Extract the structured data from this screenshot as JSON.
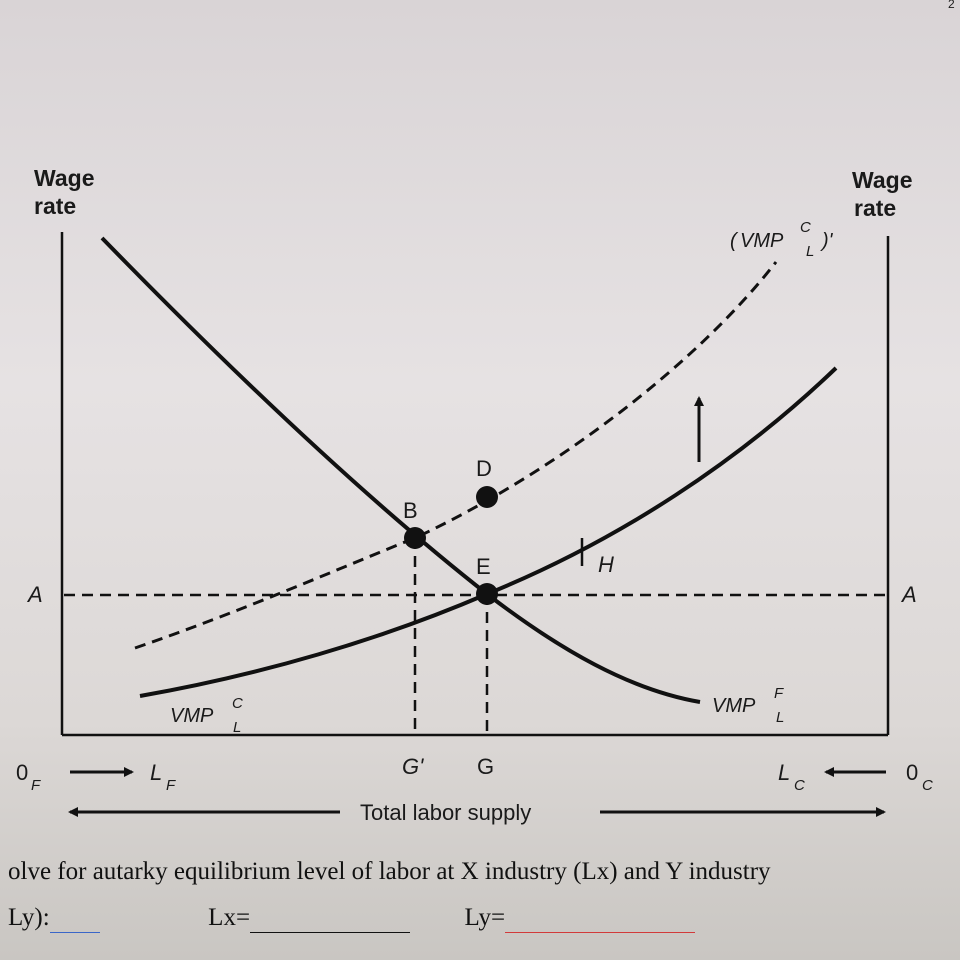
{
  "diagram": {
    "left_axis_label": [
      "Wage",
      "rate"
    ],
    "right_axis_label": [
      "Wage",
      "rate"
    ],
    "curve_labels": {
      "vmp_f": {
        "main": "VMP",
        "sup": "F",
        "sub": "L"
      },
      "vmp_c": {
        "main": "VMP",
        "sup": "C",
        "sub": "L"
      },
      "vmp_c_prime": {
        "open": "(",
        "main": "VMP",
        "sup": "C",
        "sub": "L",
        "close": ")'"
      }
    },
    "points": {
      "b": "B",
      "d": "D",
      "e": "E",
      "h": "H"
    },
    "wage_line": {
      "left": "A",
      "right": "A"
    },
    "x_marks": {
      "g_prime": "G'",
      "g": "G"
    },
    "origins": {
      "left": {
        "main": "0",
        "sub": "F"
      },
      "left_dir": {
        "main": "L",
        "sub": "F"
      },
      "right": {
        "main": "0",
        "sub": "C"
      },
      "right_dir": {
        "main": "L",
        "sub": "C"
      }
    },
    "total_label": "Total labor supply"
  },
  "question": {
    "line1": "olve for autarky equilibrium level of labor at X industry (Lx) and Y industry",
    "line2_prefix": "Ly):",
    "lx_label": "Lx=",
    "ly_label": "Ly=",
    "page_num": "2"
  }
}
